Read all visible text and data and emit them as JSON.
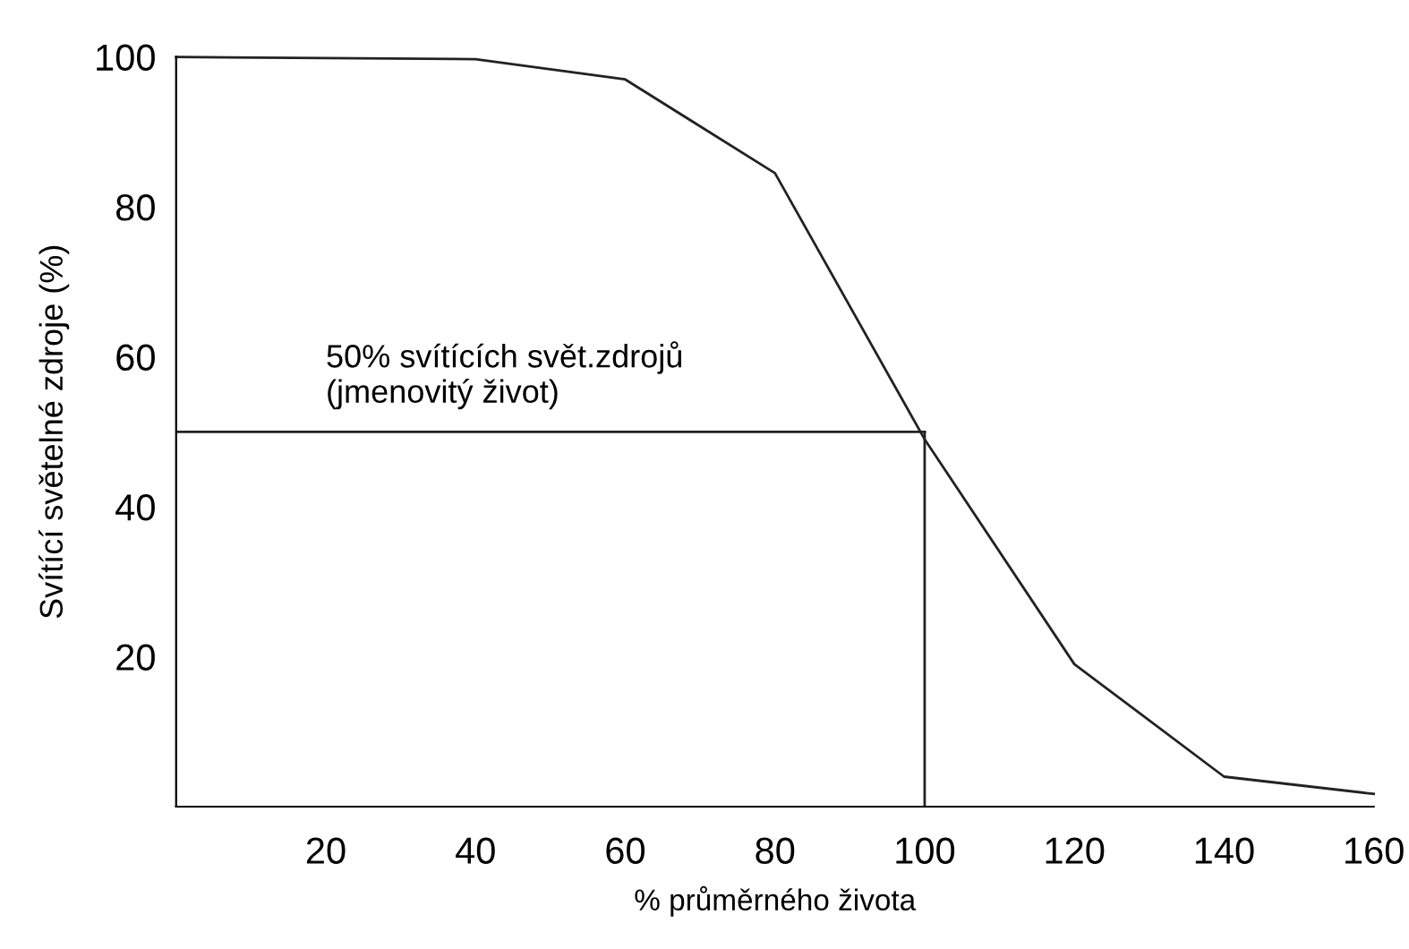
{
  "chart_data": {
    "type": "line",
    "xlabel": "% průměrného života",
    "ylabel": "Svítící světelné zdroje (%)",
    "x": [
      0,
      40,
      60,
      80,
      100,
      120,
      140,
      160
    ],
    "series": [
      {
        "color": "#222222",
        "values": [
          100,
          99.7,
          97,
          84.5,
          49,
          19,
          4,
          1.7
        ]
      }
    ],
    "ref_lines": [
      {
        "axis": "y",
        "value": 50,
        "label": "50% svítících svět.zdrojů\n(jmenovitý život)",
        "color": "#222222"
      },
      {
        "axis": "x",
        "value": 100,
        "color": "#222222"
      }
    ],
    "xlim": [
      0,
      160
    ],
    "ylim": [
      0,
      100
    ],
    "xticks": [
      20,
      40,
      60,
      80,
      100,
      120,
      140,
      160
    ],
    "yticks": [
      20,
      40,
      60,
      80,
      100
    ],
    "grid": false,
    "legend": false,
    "marker": "none",
    "line_style": "solid"
  }
}
